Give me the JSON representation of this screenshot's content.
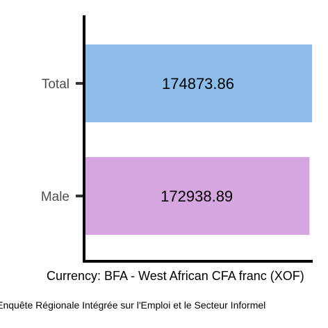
{
  "chart_data": {
    "type": "bar",
    "orientation": "horizontal",
    "categories": [
      "Total",
      "Male"
    ],
    "values": [
      174873.86,
      172938.89
    ],
    "data_labels": [
      "174873.86",
      "172938.89"
    ],
    "colors": [
      "#8bbde8",
      "#d5a6e0"
    ],
    "xlabel": "Currency: BFA - West African CFA franc (XOF)",
    "caption": "Source: Enquête Régionale Intégrée sur l'Emploi et le Secteur Informel",
    "grid": false,
    "legend": "none"
  }
}
